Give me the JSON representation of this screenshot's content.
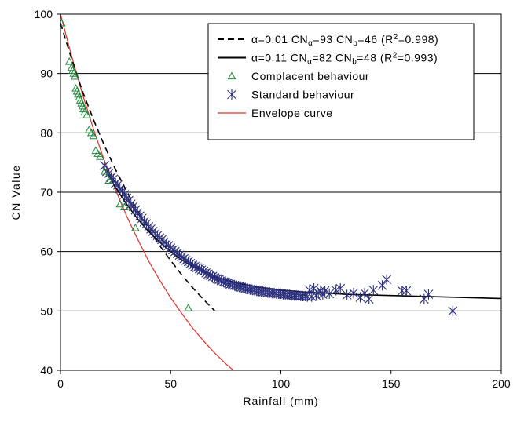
{
  "chart_data": {
    "type": "scatter",
    "title": "",
    "xlabel": "Rainfall (mm)",
    "ylabel": "CN Value",
    "xlim": [
      0,
      200
    ],
    "ylim": [
      40,
      100
    ],
    "x_ticks": [
      "0",
      "50",
      "100",
      "150",
      "200"
    ],
    "y_ticks": [
      "40",
      "50",
      "60",
      "70",
      "80",
      "90",
      "100"
    ],
    "grid": "horizontal",
    "legend_position": "top-right",
    "series": [
      {
        "name": "α=0.01 CNα=93 CNb=46 (R²=0.998)",
        "legend": {
          "pre": "α=0.01 CN",
          "sub1": "α",
          "mid": "=93 CN",
          "sub2": "b",
          "mid2": "=46 (R",
          "sup": "2",
          "post": "=0.998)"
        },
        "kind": "line",
        "style": "dashed",
        "color": "#000000",
        "x": [
          0,
          5,
          10,
          15,
          20,
          25,
          30,
          35,
          40,
          45,
          50,
          55,
          60,
          65,
          70
        ],
        "y": [
          98.5,
          92.5,
          87.0,
          82.2,
          77.8,
          73.8,
          70.2,
          66.9,
          63.8,
          61.0,
          58.5,
          56.1,
          53.9,
          51.9,
          50.0
        ]
      },
      {
        "name": "α=0.11 CNα=82 CNb=48 (R²=0.993)",
        "legend": {
          "pre": "α=0.11 CN",
          "sub1": "α",
          "mid": "=82 CN",
          "sub2": "b",
          "mid2": "=48 (R",
          "sup": "2",
          "post": "=0.993)"
        },
        "kind": "line",
        "style": "solid",
        "color": "#000000",
        "x": [
          20,
          25,
          30,
          35,
          40,
          45,
          50,
          55,
          60,
          70,
          80,
          90,
          100,
          110,
          120,
          130,
          140,
          150,
          160,
          170,
          180,
          190,
          200
        ],
        "y": [
          74.0,
          70.8,
          68.0,
          65.5,
          63.4,
          61.6,
          60.0,
          58.6,
          57.5,
          55.8,
          54.7,
          54.0,
          53.5,
          53.2,
          53.0,
          52.8,
          52.7,
          52.6,
          52.5,
          52.4,
          52.3,
          52.2,
          52.1
        ]
      },
      {
        "name": "Complacent behaviour",
        "kind": "marker",
        "marker": "triangle",
        "color": "#1f8a3a",
        "x": [
          0.5,
          4,
          5,
          5.5,
          6,
          6.5,
          7,
          7.5,
          8,
          8.5,
          9,
          9.5,
          10,
          10.5,
          11,
          12,
          13,
          14,
          15,
          16,
          17,
          18,
          20,
          22,
          27,
          29,
          34,
          58
        ],
        "y": [
          98.5,
          92,
          91,
          90.5,
          90,
          89.5,
          87.5,
          87,
          86.5,
          86,
          85.5,
          85,
          84.5,
          84,
          83.5,
          83,
          80.5,
          80,
          79.5,
          77,
          76.5,
          76,
          73.5,
          72,
          68,
          67.5,
          64,
          50.5
        ]
      },
      {
        "name": "Standard behaviour",
        "kind": "marker",
        "marker": "asterisk",
        "color": "#2b2f7d",
        "x": [
          20,
          21,
          22,
          23,
          24,
          25,
          26,
          27,
          28,
          29,
          30,
          31,
          32,
          33,
          34,
          35,
          36,
          37,
          38,
          39,
          40,
          41,
          42,
          43,
          44,
          45,
          46,
          47,
          48,
          49,
          50,
          51,
          52,
          53,
          54,
          55,
          56,
          57,
          58,
          59,
          60,
          61,
          62,
          63,
          64,
          65,
          66,
          67,
          68,
          69,
          70,
          71,
          72,
          73,
          74,
          75,
          76,
          77,
          78,
          79,
          80,
          81,
          82,
          83,
          84,
          85,
          86,
          87,
          88,
          89,
          90,
          91,
          92,
          93,
          94,
          95,
          96,
          97,
          98,
          99,
          100,
          101,
          102,
          103,
          104,
          105,
          106,
          107,
          108,
          109,
          110,
          111,
          112,
          113,
          114,
          115,
          116,
          117,
          118,
          119,
          120,
          122,
          125,
          127,
          130,
          133,
          136,
          138,
          140,
          142,
          146,
          148,
          155,
          157,
          165,
          167,
          178
        ],
        "y": [
          74.5,
          73.5,
          73.2,
          72.5,
          72.2,
          71.5,
          71.2,
          70.6,
          70.2,
          69.6,
          69.0,
          68.6,
          68.0,
          67.6,
          67.0,
          66.5,
          66.0,
          65.6,
          65.0,
          64.7,
          64.2,
          63.8,
          63.4,
          63.0,
          62.7,
          62.3,
          62.0,
          61.6,
          61.2,
          61.0,
          60.6,
          60.3,
          60.0,
          59.7,
          59.4,
          59.1,
          58.8,
          58.5,
          58.3,
          58.0,
          57.7,
          57.5,
          57.3,
          57.1,
          56.9,
          56.7,
          56.4,
          56.2,
          56.0,
          55.8,
          55.6,
          55.4,
          55.3,
          55.1,
          54.9,
          54.8,
          54.7,
          54.5,
          54.4,
          54.3,
          54.2,
          54.1,
          54.0,
          53.9,
          53.8,
          53.7,
          53.6,
          53.6,
          53.5,
          53.4,
          53.4,
          53.3,
          53.2,
          53.2,
          53.1,
          53.1,
          53.0,
          53.0,
          52.9,
          52.9,
          52.9,
          52.8,
          52.8,
          52.7,
          52.7,
          52.6,
          52.6,
          52.6,
          52.6,
          52.5,
          52.5,
          52.5,
          52.4,
          53.5,
          52.4,
          53.8,
          52.6,
          53.0,
          53.4,
          52.8,
          53.4,
          52.9,
          53.5,
          53.8,
          52.7,
          53.0,
          52.3,
          53.0,
          52.0,
          53.5,
          54.3,
          55.3,
          53.4,
          53.4,
          52.0,
          52.8,
          50.0
        ]
      },
      {
        "name": "Envelope curve",
        "kind": "line",
        "style": "solid",
        "color": "#e0302a",
        "x": [
          0,
          5,
          10,
          15,
          20,
          25,
          30,
          35,
          40,
          45,
          50,
          55,
          60,
          65,
          70,
          75,
          80
        ],
        "y": [
          100,
          93.0,
          86.5,
          80.6,
          75.2,
          70.4,
          66.0,
          62.1,
          58.4,
          55.2,
          52.2,
          49.6,
          47.1,
          44.9,
          42.9,
          41.1,
          39.5
        ]
      }
    ]
  }
}
